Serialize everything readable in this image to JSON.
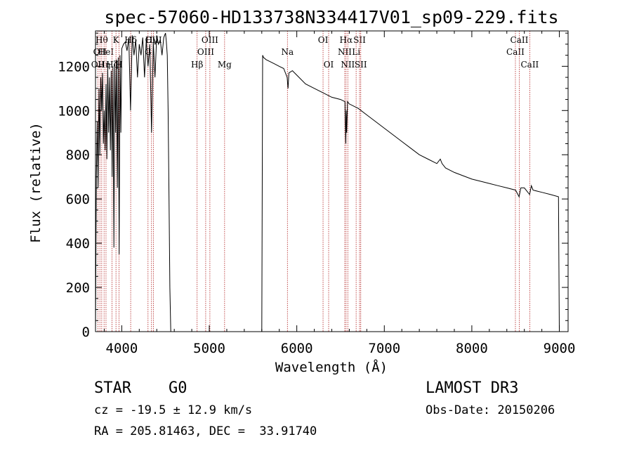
{
  "chart_data": {
    "type": "line",
    "title": "spec-57060-HD133738N334417V01_sp09-229.fits",
    "xlabel": "Wavelength (Å)",
    "ylabel": "Flux (relative)",
    "xlim": [
      3700,
      9100
    ],
    "ylim": [
      0,
      1360
    ],
    "xticks": [
      4000,
      5000,
      6000,
      7000,
      8000,
      9000
    ],
    "yticks": [
      0,
      200,
      400,
      600,
      800,
      1000,
      1200
    ],
    "series": [
      {
        "name": "spectrum",
        "x": [
          3700,
          3710,
          3720,
          3730,
          3740,
          3750,
          3760,
          3770,
          3780,
          3790,
          3800,
          3810,
          3820,
          3830,
          3840,
          3850,
          3860,
          3870,
          3880,
          3890,
          3900,
          3910,
          3920,
          3930,
          3940,
          3950,
          3960,
          3970,
          3980,
          3990,
          4000,
          4020,
          4040,
          4060,
          4080,
          4100,
          4120,
          4140,
          4160,
          4180,
          4200,
          4220,
          4240,
          4260,
          4280,
          4300,
          4320,
          4340,
          4360,
          4380,
          4400,
          4420,
          4440,
          4460,
          4480,
          4500,
          4510,
          4520,
          4530,
          4540,
          4550,
          4560,
          5600,
          5610,
          5620,
          5650,
          5700,
          5750,
          5800,
          5850,
          5890,
          5900,
          5910,
          5950,
          6000,
          6100,
          6200,
          6300,
          6400,
          6500,
          6550,
          6560,
          6565,
          6570,
          6580,
          6600,
          6700,
          6800,
          6900,
          7000,
          7100,
          7200,
          7300,
          7400,
          7500,
          7600,
          7640,
          7660,
          7700,
          7800,
          7900,
          8000,
          8100,
          8200,
          8300,
          8400,
          8500,
          8540,
          8560,
          8600,
          8660,
          8680,
          8700,
          8800,
          8900,
          8990,
          9000
        ],
        "y": [
          0,
          700,
          950,
          650,
          1100,
          800,
          1150,
          1000,
          1170,
          850,
          1000,
          820,
          1120,
          780,
          1200,
          900,
          1150,
          820,
          1180,
          700,
          1200,
          380,
          1210,
          900,
          1230,
          650,
          1240,
          350,
          1250,
          900,
          1280,
          1300,
          1310,
          1270,
          1330,
          1000,
          1340,
          1250,
          1320,
          1150,
          1300,
          1250,
          1330,
          1150,
          1320,
          1200,
          1300,
          900,
          1310,
          1150,
          1340,
          1300,
          1320,
          1250,
          1330,
          1350,
          1310,
          1250,
          1000,
          600,
          200,
          0,
          0,
          1250,
          1240,
          1230,
          1220,
          1210,
          1200,
          1190,
          1150,
          1100,
          1170,
          1180,
          1160,
          1120,
          1100,
          1080,
          1060,
          1050,
          1040,
          850,
          1000,
          900,
          1040,
          1030,
          1010,
          980,
          950,
          920,
          890,
          860,
          830,
          800,
          780,
          760,
          780,
          760,
          740,
          720,
          705,
          690,
          680,
          670,
          660,
          650,
          640,
          610,
          650,
          650,
          620,
          660,
          640,
          630,
          620,
          610,
          0
        ]
      }
    ],
    "lines": [
      {
        "wl": 3727,
        "label": "OII",
        "row": 2
      },
      {
        "wl": 3750,
        "label": "OII",
        "row": 1
      },
      {
        "wl": 3771,
        "label": "Hθ",
        "row": 0
      },
      {
        "wl": 3798,
        "label": "Hη",
        "row": 2
      },
      {
        "wl": 3820,
        "label": "HeI",
        "row": 1
      },
      {
        "wl": 3889,
        "label": "Hζ",
        "row": 2
      },
      {
        "wl": 3934,
        "label": "K",
        "row": 0
      },
      {
        "wl": 3969,
        "label": "H",
        "row": 2
      },
      {
        "wl": 4102,
        "label": "Hδ",
        "row": 0
      },
      {
        "wl": 4300,
        "label": "G",
        "row": 1
      },
      {
        "wl": 4340,
        "label": "Hγ",
        "row": 0
      },
      {
        "wl": 4363,
        "label": "OIII",
        "row": 0
      },
      {
        "wl": 4861,
        "label": "Hβ",
        "row": 2
      },
      {
        "wl": 4959,
        "label": "OIII",
        "row": 1
      },
      {
        "wl": 5007,
        "label": "OIII",
        "row": 0
      },
      {
        "wl": 5175,
        "label": "Mg",
        "row": 2
      },
      {
        "wl": 5893,
        "label": "Na",
        "row": 1
      },
      {
        "wl": 6300,
        "label": "OI",
        "row": 0
      },
      {
        "wl": 6364,
        "label": "OI",
        "row": 2
      },
      {
        "wl": 6548,
        "label": "NII",
        "row": 1
      },
      {
        "wl": 6563,
        "label": "Hα",
        "row": 0
      },
      {
        "wl": 6583,
        "label": "NII",
        "row": 2
      },
      {
        "wl": 6678,
        "label": "Li",
        "row": 1
      },
      {
        "wl": 6717,
        "label": "SII",
        "row": 0
      },
      {
        "wl": 6731,
        "label": "SII",
        "row": 2
      },
      {
        "wl": 8498,
        "label": "CaII",
        "row": 1
      },
      {
        "wl": 8542,
        "label": "CaII",
        "row": 0
      },
      {
        "wl": 8662,
        "label": "CaII",
        "row": 2
      }
    ]
  },
  "footer": {
    "object_type": "STAR",
    "subclass": "G0",
    "survey": "LAMOST DR3",
    "redshift": "cz = -19.5 ± 12.9 km/s",
    "obs_date": "Obs-Date: 20150206",
    "coords": "RA = 205.81463, DEC =  33.91740"
  },
  "colors": {
    "spectrum": "#000000",
    "lines": "#b22222",
    "axes": "#000000"
  }
}
